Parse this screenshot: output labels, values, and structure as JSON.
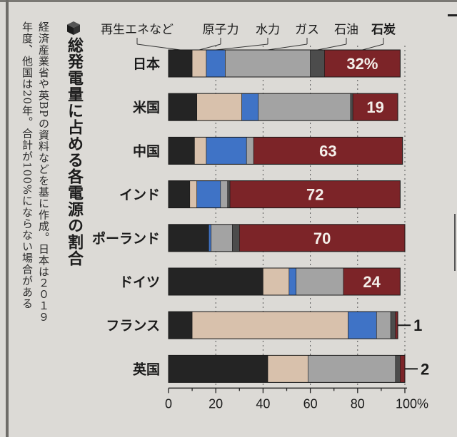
{
  "header": {
    "title": "総発電量に占める各電源の割合",
    "source_line1": "経済産業省や英BPの資料などを基に作成。日本は２０１９",
    "source_line2": "年度、他国は20年。合計が100%にならない場合がある"
  },
  "colors": {
    "再生エネなど": "#242424",
    "原子力": "#d8c1ac",
    "水力": "#3f73c6",
    "ガス": "#a3a3a3",
    "石油": "#4c4c4c",
    "石炭": "#7c2428"
  },
  "chart_data": {
    "type": "bar",
    "orientation": "horizontal",
    "stacked": true,
    "categories": [
      "日本",
      "米国",
      "中国",
      "インド",
      "ポーランド",
      "ドイツ",
      "フランス",
      "英国"
    ],
    "series": [
      {
        "name": "再生エネなど",
        "values": [
          10,
          12,
          11,
          9,
          17,
          40,
          10,
          42
        ]
      },
      {
        "name": "原子力",
        "values": [
          6,
          19,
          5,
          3,
          0,
          11,
          66,
          17
        ]
      },
      {
        "name": "水力",
        "values": [
          8,
          7,
          17,
          10,
          1,
          3,
          12,
          0
        ]
      },
      {
        "name": "ガス",
        "values": [
          36,
          39,
          3,
          3,
          9,
          20,
          6,
          37
        ]
      },
      {
        "name": "石油",
        "values": [
          6,
          1,
          0,
          1,
          3,
          0,
          2,
          2
        ]
      },
      {
        "name": "石炭",
        "values": [
          32,
          19,
          63,
          72,
          70,
          24,
          1,
          2
        ]
      }
    ],
    "bar_labels": [
      "32%",
      "19",
      "63",
      "72",
      "70",
      "24",
      "1",
      "2"
    ],
    "xlim": [
      0,
      100
    ],
    "xticks": [
      "0",
      "20",
      "40",
      "60",
      "80",
      "100%"
    ],
    "legend": [
      "再生エネなど",
      "原子力",
      "水力",
      "ガス",
      "石油",
      "石炭"
    ],
    "legend_position": "top",
    "grid": true
  }
}
